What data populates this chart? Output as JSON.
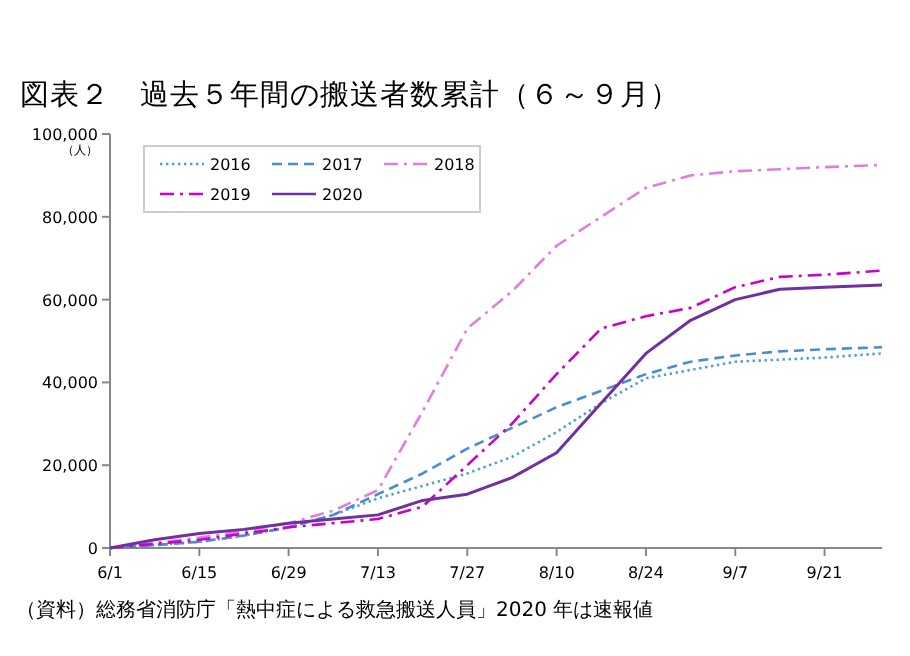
{
  "chart_data": {
    "type": "line",
    "title": "図表２　過去５年間の搬送者数累計（６～９月）",
    "ylabel": "（人）",
    "annotations": [
      "（資料）総務省消防庁「熱中症による救急搬送人員」2020 年は速報値"
    ],
    "x": [
      "--06-01",
      "--06-08",
      "--06-15",
      "--06-22",
      "--06-29",
      "--07-06",
      "--07-13",
      "--07-20",
      "--07-27",
      "--08-03",
      "--08-10",
      "--08-17",
      "--08-24",
      "--08-31",
      "--09-07",
      "--09-14",
      "--09-21",
      "--09-30"
    ],
    "xlim": [
      "--06-01",
      "--09-30"
    ],
    "xticks": [
      {
        "value": "--06-01",
        "label": "6/1"
      },
      {
        "value": "--06-15",
        "label": "6/15"
      },
      {
        "value": "--06-29",
        "label": "6/29"
      },
      {
        "value": "--07-13",
        "label": "7/13"
      },
      {
        "value": "--07-27",
        "label": "7/27"
      },
      {
        "value": "--08-10",
        "label": "8/10"
      },
      {
        "value": "--08-24",
        "label": "8/24"
      },
      {
        "value": "--09-07",
        "label": "9/7"
      },
      {
        "value": "--09-21",
        "label": "9/21"
      }
    ],
    "ylim": [
      0,
      100000
    ],
    "yticks": [
      0,
      {
        "value": 20000,
        "label": "20,000"
      },
      {
        "value": 40000,
        "label": "40,000"
      },
      {
        "value": 60000,
        "label": "60,000"
      },
      {
        "value": 80000,
        "label": "80,000"
      },
      {
        "value": 100000,
        "label": "100,000"
      }
    ],
    "legend": "top left",
    "grid": false,
    "series": [
      {
        "name": "2016",
        "color": "#4ba3c8",
        "line_style": "dotted",
        "values": [
          0,
          700,
          1500,
          3000,
          5000,
          8000,
          12000,
          15000,
          18000,
          22000,
          28000,
          35000,
          41000,
          43000,
          45000,
          45500,
          46000,
          47000
        ]
      },
      {
        "name": "2017",
        "color": "#4a8ccf",
        "line_style": "dashed",
        "values": [
          0,
          700,
          1500,
          3000,
          5000,
          8000,
          13000,
          18000,
          24000,
          29000,
          34000,
          38000,
          42000,
          45000,
          46500,
          47500,
          48000,
          48500
        ]
      },
      {
        "name": "2018",
        "color": "#e07ee0",
        "line_style": "dashdot",
        "values": [
          0,
          1200,
          2500,
          4000,
          6000,
          9000,
          14000,
          33000,
          53000,
          62000,
          73000,
          80000,
          87000,
          90000,
          91000,
          91500,
          92000,
          92500
        ]
      },
      {
        "name": "2019",
        "color": "#cc00cc",
        "line_style": "dashdot",
        "values": [
          0,
          1000,
          2000,
          3500,
          5000,
          6000,
          7000,
          10000,
          20000,
          30000,
          42000,
          53000,
          56000,
          58000,
          63000,
          65500,
          66000,
          67000
        ]
      },
      {
        "name": "2020",
        "color": "#7030a0",
        "line_style": "solid",
        "values": [
          0,
          2000,
          3500,
          4500,
          6000,
          7000,
          8000,
          11500,
          13000,
          17000,
          23000,
          35000,
          47000,
          55000,
          60000,
          62500,
          63000,
          63500
        ]
      }
    ]
  }
}
